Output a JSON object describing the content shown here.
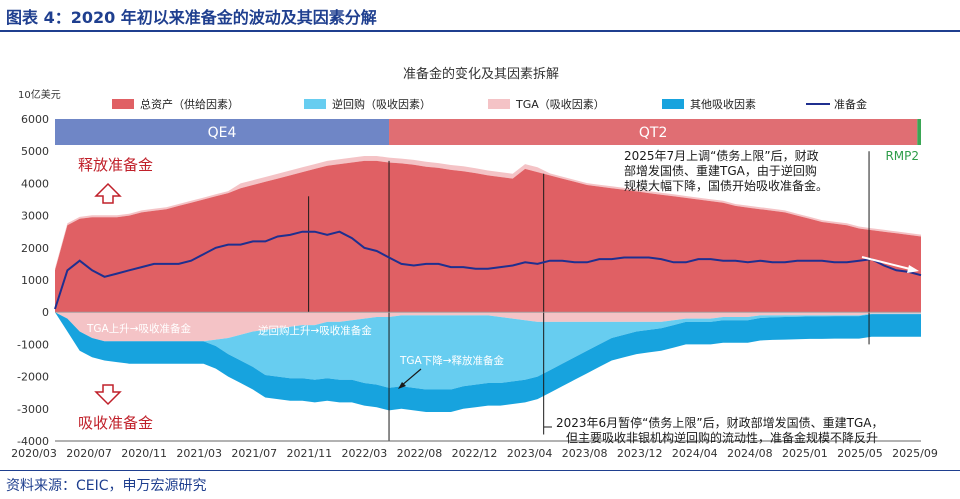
{
  "figure_title": "图表 4：2020 年初以来准备金的波动及其因素分解",
  "source": "资料来源：CEIC，申万宏源研究",
  "chart_data": {
    "type": "area",
    "title": "准备金的变化及其因素拆解",
    "ylabel": "10亿美元",
    "ylim": [
      -4000,
      6000
    ],
    "yticks": [
      -4000,
      -3000,
      -2000,
      -1000,
      0,
      1000,
      2000,
      3000,
      4000,
      5000,
      6000
    ],
    "xlim": [
      0,
      70
    ],
    "x_tick_labels": [
      "2020/03",
      "2020/07",
      "2020/11",
      "2021/03",
      "2021/07",
      "2021/11",
      "2022/03",
      "2022/08",
      "2022/12",
      "2023/04",
      "2023/08",
      "2023/12",
      "2024/04",
      "2024/08",
      "2025/01",
      "2025/05",
      "2025/09"
    ],
    "legend": [
      "总资产（供给因素）",
      "逆回购（吸收因素）",
      "TGA（吸收因素）",
      "其他吸收因素",
      "准备金"
    ],
    "regimes": [
      {
        "label": "QE4",
        "start": 0,
        "end": 27,
        "color": "#6f86c6"
      },
      {
        "label": "QT2",
        "start": 27,
        "end": 69.7,
        "color": "#e06e73"
      },
      {
        "label": "RMP2",
        "start": 69.7,
        "end": 70,
        "color": "#3aa655"
      }
    ],
    "months_since_2020_03": [
      0,
      1,
      2,
      3,
      4,
      5,
      6,
      7,
      8,
      9,
      10,
      11,
      12,
      13,
      14,
      15,
      16,
      17,
      18,
      19,
      20,
      21,
      22,
      23,
      24,
      25,
      26,
      27,
      28,
      29,
      30,
      31,
      32,
      33,
      34,
      35,
      36,
      37,
      38,
      39,
      40,
      41,
      42,
      43,
      44,
      45,
      46,
      47,
      48,
      49,
      50,
      51,
      52,
      53,
      54,
      55,
      56,
      57,
      58,
      59,
      60,
      61,
      62,
      63,
      64,
      65,
      66,
      67,
      68,
      69,
      70
    ],
    "series": [
      {
        "name": "总资产（供给因素）",
        "values": [
          1300,
          2700,
          2900,
          2950,
          2950,
          2950,
          3000,
          3100,
          3150,
          3200,
          3300,
          3400,
          3500,
          3600,
          3700,
          3850,
          3950,
          4050,
          4150,
          4250,
          4350,
          4450,
          4550,
          4600,
          4650,
          4700,
          4700,
          4650,
          4620,
          4580,
          4520,
          4480,
          4420,
          4380,
          4320,
          4250,
          4200,
          4150,
          4450,
          4350,
          4250,
          4150,
          4050,
          3950,
          3900,
          3850,
          3800,
          3750,
          3700,
          3650,
          3600,
          3550,
          3500,
          3450,
          3400,
          3300,
          3250,
          3200,
          3150,
          3100,
          3000,
          2900,
          2800,
          2750,
          2700,
          2600,
          2550,
          2500,
          2450,
          2400,
          2350
        ]
      },
      {
        "name": "TGA（吸收因素）",
        "values": [
          0,
          -200,
          -600,
          -800,
          -900,
          -900,
          -900,
          -900,
          -900,
          -900,
          -900,
          -900,
          -900,
          -850,
          -800,
          -700,
          -600,
          -550,
          -500,
          -450,
          -400,
          -400,
          -300,
          -300,
          -250,
          -200,
          -150,
          -150,
          -100,
          -100,
          -100,
          -100,
          -100,
          -100,
          -100,
          -100,
          -150,
          -200,
          -250,
          -300,
          -300,
          -300,
          -300,
          -300,
          -300,
          -300,
          -300,
          -300,
          -300,
          -300,
          -250,
          -200,
          -200,
          -200,
          -150,
          -150,
          -150,
          -100,
          -100,
          -100,
          -100,
          -100,
          -100,
          -100,
          -100,
          -100,
          -50,
          -50,
          -50,
          -50,
          -50
        ]
      },
      {
        "name": "逆回购（吸收因素）",
        "values": [
          0,
          0,
          0,
          0,
          0,
          0,
          0,
          0,
          0,
          0,
          0,
          0,
          0,
          -200,
          -500,
          -800,
          -1100,
          -1400,
          -1500,
          -1600,
          -1650,
          -1700,
          -1750,
          -1800,
          -1850,
          -2000,
          -2100,
          -2200,
          -2200,
          -2250,
          -2300,
          -2300,
          -2300,
          -2200,
          -2150,
          -2100,
          -2050,
          -1950,
          -1850,
          -1700,
          -1500,
          -1300,
          -1100,
          -900,
          -700,
          -500,
          -400,
          -300,
          -250,
          -200,
          -150,
          -100,
          -100,
          -100,
          -100,
          -100,
          -100,
          -80,
          -60,
          -50,
          -40,
          -30,
          -30,
          -20,
          -20,
          -20,
          -10,
          -10,
          -10,
          -10,
          -10
        ]
      },
      {
        "name": "其他吸收因素",
        "values": [
          0,
          -400,
          -600,
          -600,
          -600,
          -650,
          -700,
          -700,
          -700,
          -700,
          -700,
          -700,
          -700,
          -700,
          -700,
          -700,
          -700,
          -700,
          -700,
          -700,
          -700,
          -700,
          -700,
          -700,
          -700,
          -700,
          -700,
          -700,
          -700,
          -700,
          -700,
          -700,
          -700,
          -700,
          -700,
          -700,
          -700,
          -700,
          -700,
          -700,
          -700,
          -700,
          -700,
          -700,
          -700,
          -700,
          -700,
          -700,
          -700,
          -700,
          -700,
          -700,
          -700,
          -700,
          -700,
          -700,
          -700,
          -700,
          -700,
          -700,
          -700,
          -700,
          -700,
          -700,
          -700,
          -700,
          -700,
          -700,
          -700,
          -700,
          -700
        ]
      },
      {
        "name": "准备金",
        "values": [
          100,
          1300,
          1600,
          1300,
          1100,
          1200,
          1300,
          1400,
          1500,
          1500,
          1500,
          1600,
          1800,
          2000,
          2100,
          2100,
          2200,
          2200,
          2350,
          2400,
          2500,
          2500,
          2400,
          2500,
          2300,
          2000,
          1900,
          1700,
          1500,
          1450,
          1500,
          1500,
          1400,
          1400,
          1350,
          1350,
          1400,
          1450,
          1550,
          1500,
          1600,
          1600,
          1550,
          1550,
          1650,
          1650,
          1700,
          1700,
          1700,
          1650,
          1550,
          1550,
          1650,
          1650,
          1600,
          1600,
          1550,
          1600,
          1550,
          1550,
          1600,
          1600,
          1600,
          1550,
          1550,
          1600,
          1650,
          1450,
          1300,
          1250,
          1150
        ]
      }
    ],
    "regime_text": {
      "qe4": "QE4",
      "qt2": "QT2",
      "rmp2": "RMP2"
    },
    "annotations": {
      "release": "释放准备金",
      "absorb": "吸收准备金",
      "tga_up": "TGA上升→吸收准备金",
      "repo_up": "逆回购上升→吸收准备金",
      "tga_down": "TGA下降→释放准备金",
      "note_2025": [
        "2025年7月上调“债务上限”后，财政",
        "部增发国债、重建TGA，由于逆回购",
        "规模大幅下降，国债开始吸收准备金。"
      ],
      "note_2023": [
        "2023年6月暂停“债务上限”后，财政部增发国债、重建TGA，",
        "但主要吸收非银机构逆回购的流动性，准备金规模不降反升"
      ]
    },
    "colors": {
      "assets": "#e06064",
      "repo": "#67cdf0",
      "tga": "#f4c3c6",
      "other": "#17a3de",
      "reserves": "#1f2f8f",
      "arrow": "#c0202a",
      "arrow_fill": "#ffffff",
      "regime_text": "#ffffff",
      "rmp_text": "#2f9d4a"
    }
  }
}
